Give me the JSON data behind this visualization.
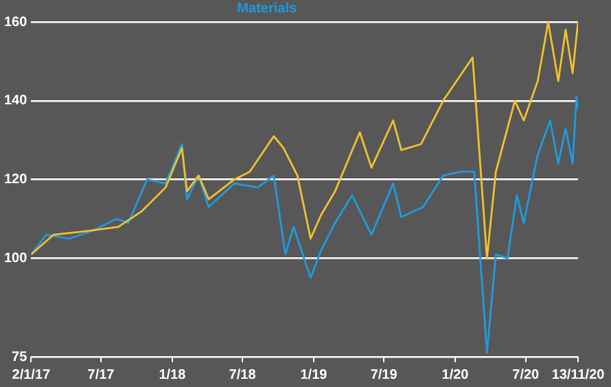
{
  "chart_data": {
    "type": "line",
    "legend": "top left",
    "grid": "y",
    "marker": "none",
    "xlim": [
      "2017-01-02",
      "2020-11-13"
    ],
    "xticks": [
      {
        "value": "2017-01-02",
        "label": "2/1/17"
      },
      {
        "value": "2017-07-01",
        "label": "7/17"
      },
      {
        "value": "2018-01-01",
        "label": "1/18"
      },
      {
        "value": "2018-07-01",
        "label": "7/18"
      },
      {
        "value": "2019-01-01",
        "label": "1/19"
      },
      {
        "value": "2019-07-01",
        "label": "7/19"
      },
      {
        "value": "2020-01-01",
        "label": "1/20"
      },
      {
        "value": "2020-07-01",
        "label": "7/20"
      },
      {
        "value": "2020-11-13",
        "label": "13/11/20"
      }
    ],
    "ylim": [
      75,
      160
    ],
    "yticks": [
      75,
      100,
      120,
      140,
      160
    ],
    "series": [
      {
        "color": "#f2c12e",
        "x": [
          "2017-01-02",
          "2017-03-01",
          "2017-06-01",
          "2017-08-15",
          "2017-10-15",
          "2017-12-15",
          "2018-01-26",
          "2018-02-08",
          "2018-03-10",
          "2018-04-05",
          "2018-06-10",
          "2018-07-20",
          "2018-09-20",
          "2018-10-15",
          "2018-11-20",
          "2018-12-24",
          "2019-01-20",
          "2019-02-25",
          "2019-04-30",
          "2019-05-30",
          "2019-07-25",
          "2019-08-15",
          "2019-10-05",
          "2019-12-01",
          "2020-02-15",
          "2020-03-23",
          "2020-04-15",
          "2020-06-03",
          "2020-06-26",
          "2020-08-01",
          "2020-08-28",
          "2020-09-23",
          "2020-10-12",
          "2020-10-30",
          "2020-11-13"
        ],
        "values": [
          101,
          106,
          107,
          108,
          112,
          118,
          128,
          117,
          121,
          115,
          120,
          122,
          131,
          128,
          121,
          105,
          111,
          117,
          132,
          123,
          135,
          127.5,
          129,
          140,
          151,
          100,
          122,
          140,
          135,
          145,
          160,
          145,
          158,
          147,
          160
        ]
      },
      {
        "name": "Materials",
        "color": "#1e9be0",
        "x": [
          "2017-01-02",
          "2017-02-10",
          "2017-04-10",
          "2017-06-10",
          "2017-08-10",
          "2017-09-10",
          "2017-10-28",
          "2017-12-15",
          "2018-01-26",
          "2018-02-08",
          "2018-03-10",
          "2018-04-05",
          "2018-06-10",
          "2018-08-10",
          "2018-09-20",
          "2018-10-20",
          "2018-11-10",
          "2018-12-24",
          "2019-01-20",
          "2019-02-25",
          "2019-04-10",
          "2019-05-30",
          "2019-07-25",
          "2019-08-15",
          "2019-10-10",
          "2019-12-01",
          "2020-01-15",
          "2020-02-19",
          "2020-03-23",
          "2020-04-15",
          "2020-05-15",
          "2020-06-08",
          "2020-06-26",
          "2020-07-31",
          "2020-09-02",
          "2020-09-23",
          "2020-10-12",
          "2020-10-30",
          "2020-11-09",
          "2020-11-13"
        ],
        "values": [
          101,
          106,
          105,
          107,
          110,
          109,
          120,
          119,
          129,
          115,
          121,
          113,
          119,
          118,
          121,
          101,
          108,
          95,
          102,
          109,
          116,
          106,
          119,
          110.5,
          113,
          121,
          122,
          122,
          76,
          101,
          100,
          116,
          109,
          126,
          135,
          124,
          133,
          124,
          141,
          138
        ]
      }
    ]
  }
}
